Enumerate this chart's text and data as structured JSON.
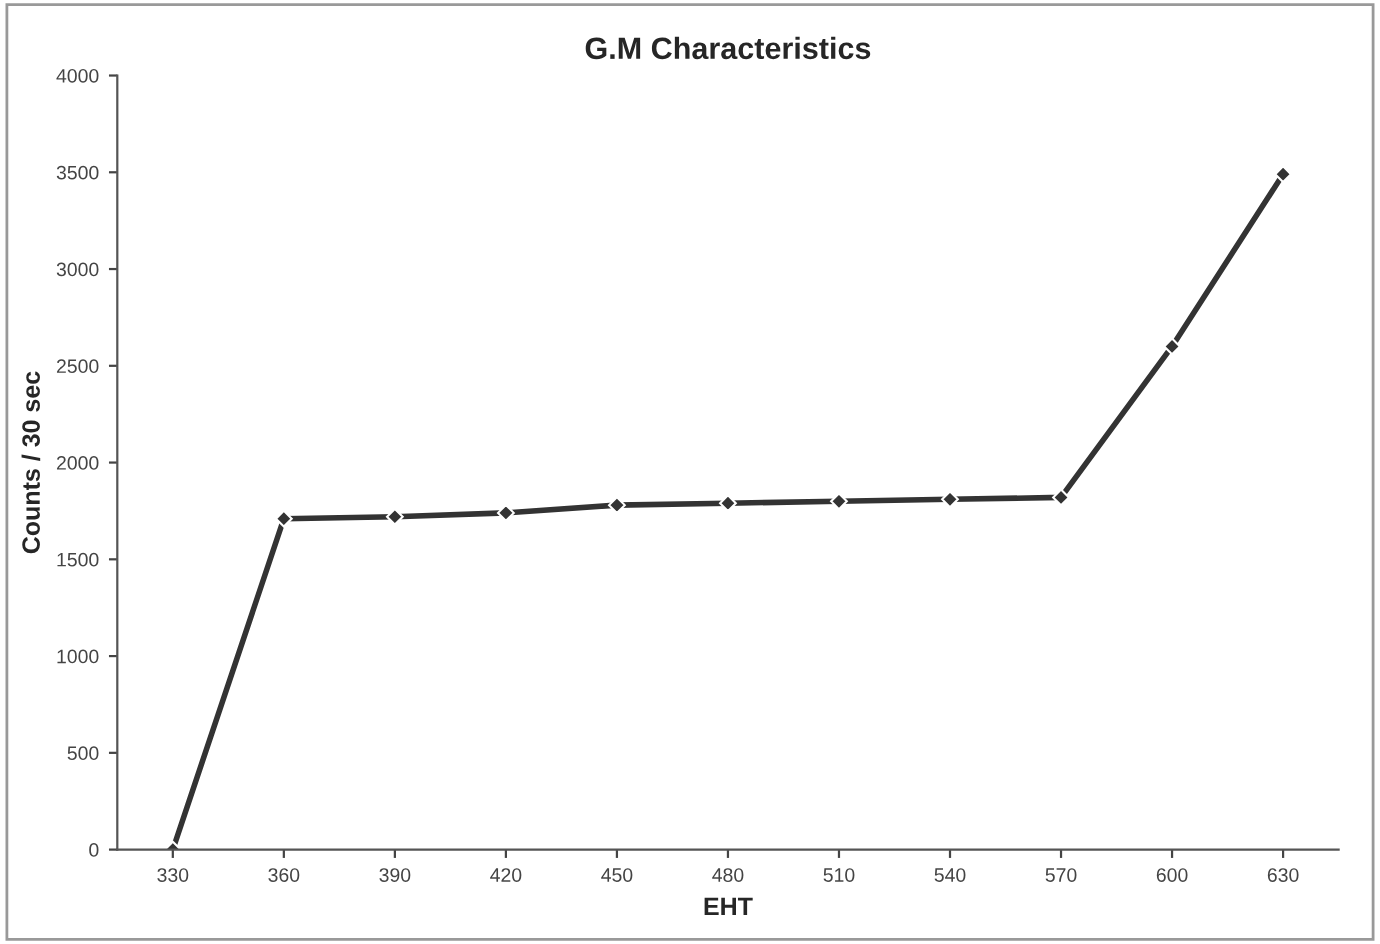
{
  "chart_data": {
    "type": "line",
    "title": "G.M Characteristics",
    "xlabel": "EHT",
    "ylabel": "Counts / 30 sec",
    "x": [
      330,
      360,
      390,
      420,
      450,
      480,
      510,
      540,
      570,
      600,
      630
    ],
    "series": [
      {
        "color": "#333333",
        "values": [
          0,
          1710,
          1720,
          1740,
          1780,
          1790,
          1800,
          1810,
          1820,
          2600,
          3490
        ]
      }
    ],
    "xlim": [
      315,
      645
    ],
    "xticks": [
      330,
      360,
      390,
      420,
      450,
      480,
      510,
      540,
      570,
      600,
      630
    ],
    "ylim": [
      0,
      4000
    ],
    "yticks": [
      0,
      500,
      1000,
      1500,
      2000,
      2500,
      3000,
      3500,
      4000
    ],
    "grid": false,
    "marker": "diamond",
    "line_style": "solid"
  }
}
